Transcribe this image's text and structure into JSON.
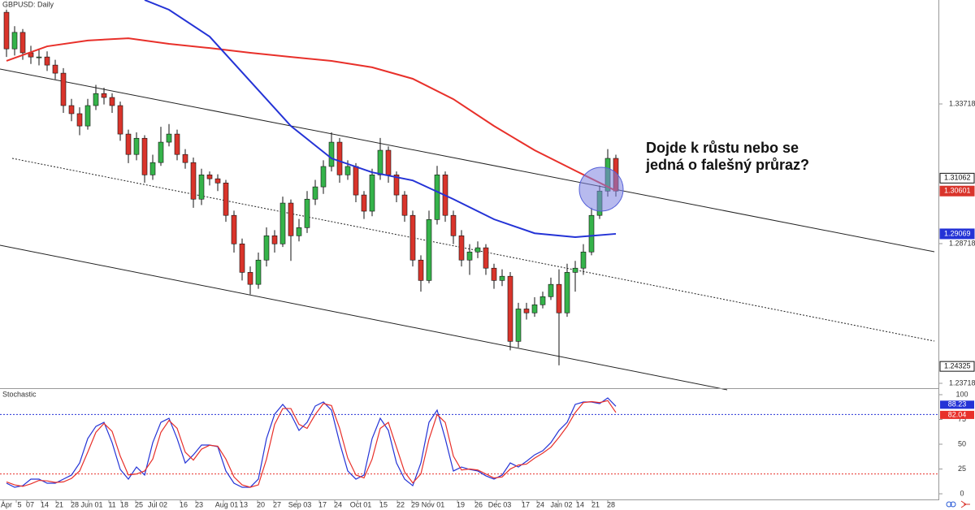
{
  "chart_data": [
    {
      "type": "candlestick",
      "title": "GBPUSD: Daily",
      "annotation": [
        "Dojde k růstu nebo se",
        "jedná o falešný průraz?"
      ],
      "ylim": [
        1.23544,
        1.37439
      ],
      "yticks": [
        1.23718,
        1.28718,
        1.33718
      ],
      "up_color": "#35b34a",
      "down_color": "#d9342b",
      "candles": [
        [
          1.37,
          1.3744,
          1.354,
          1.3569
        ],
        [
          1.3569,
          1.365,
          1.3545,
          1.3628
        ],
        [
          1.3628,
          1.364,
          1.353,
          1.3555
        ],
        [
          1.3555,
          1.358,
          1.3515,
          1.354
        ],
        [
          1.354,
          1.357,
          1.351,
          1.354
        ],
        [
          1.354,
          1.356,
          1.349,
          1.3511
        ],
        [
          1.3511,
          1.353,
          1.346,
          1.3482
        ],
        [
          1.3482,
          1.35,
          1.334,
          1.3366
        ],
        [
          1.3366,
          1.339,
          1.331,
          1.3337
        ],
        [
          1.3337,
          1.336,
          1.326,
          1.3293
        ],
        [
          1.3293,
          1.339,
          1.328,
          1.3366
        ],
        [
          1.3366,
          1.344,
          1.335,
          1.3409
        ],
        [
          1.3409,
          1.343,
          1.337,
          1.3395
        ],
        [
          1.3395,
          1.341,
          1.334,
          1.3366
        ],
        [
          1.3366,
          1.338,
          1.324,
          1.3264
        ],
        [
          1.3264,
          1.328,
          1.316,
          1.3191
        ],
        [
          1.3191,
          1.327,
          1.317,
          1.3249
        ],
        [
          1.3249,
          1.326,
          1.309,
          1.3118
        ],
        [
          1.3118,
          1.319,
          1.31,
          1.3162
        ],
        [
          1.3162,
          1.329,
          1.315,
          1.3235
        ],
        [
          1.3235,
          1.33,
          1.322,
          1.3264
        ],
        [
          1.3264,
          1.328,
          1.317,
          1.3191
        ],
        [
          1.3191,
          1.321,
          1.314,
          1.3162
        ],
        [
          1.3162,
          1.318,
          1.3,
          1.3031
        ],
        [
          1.3031,
          1.314,
          1.301,
          1.3118
        ],
        [
          1.3118,
          1.313,
          1.308,
          1.3104
        ],
        [
          1.3104,
          1.312,
          1.306,
          1.3089
        ],
        [
          1.3089,
          1.31,
          1.295,
          1.2973
        ],
        [
          1.2973,
          1.299,
          1.284,
          1.2871
        ],
        [
          1.2871,
          1.289,
          1.274,
          1.2769
        ],
        [
          1.2769,
          1.279,
          1.269,
          1.2726
        ],
        [
          1.2726,
          1.284,
          1.271,
          1.2813
        ],
        [
          1.2813,
          1.293,
          1.279,
          1.29
        ],
        [
          1.29,
          1.292,
          1.284,
          1.2871
        ],
        [
          1.2871,
          1.304,
          1.286,
          1.3017
        ],
        [
          1.3017,
          1.303,
          1.281,
          1.29
        ],
        [
          1.29,
          1.296,
          1.288,
          1.2929
        ],
        [
          1.2929,
          1.306,
          1.291,
          1.3031
        ],
        [
          1.3031,
          1.31,
          1.301,
          1.3075
        ],
        [
          1.3075,
          1.317,
          1.305,
          1.3148
        ],
        [
          1.3148,
          1.327,
          1.313,
          1.3235
        ],
        [
          1.3235,
          1.325,
          1.309,
          1.3118
        ],
        [
          1.3118,
          1.317,
          1.31,
          1.3148
        ],
        [
          1.3148,
          1.316,
          1.302,
          1.3046
        ],
        [
          1.3046,
          1.306,
          1.296,
          1.2988
        ],
        [
          1.2988,
          1.314,
          1.297,
          1.3118
        ],
        [
          1.3118,
          1.325,
          1.31,
          1.3206
        ],
        [
          1.3206,
          1.322,
          1.309,
          1.3118
        ],
        [
          1.3118,
          1.313,
          1.302,
          1.3046
        ],
        [
          1.3046,
          1.306,
          1.295,
          1.2973
        ],
        [
          1.2973,
          1.299,
          1.279,
          1.2813
        ],
        [
          1.2813,
          1.283,
          1.27,
          1.274
        ],
        [
          1.274,
          1.299,
          1.273,
          1.2958
        ],
        [
          1.2958,
          1.315,
          1.294,
          1.3118
        ],
        [
          1.3118,
          1.313,
          1.295,
          1.2973
        ],
        [
          1.2973,
          1.299,
          1.287,
          1.29
        ],
        [
          1.29,
          1.292,
          1.279,
          1.2813
        ],
        [
          1.2813,
          1.287,
          1.276,
          1.2842
        ],
        [
          1.2842,
          1.288,
          1.282,
          1.2857
        ],
        [
          1.2857,
          1.287,
          1.276,
          1.2784
        ],
        [
          1.2784,
          1.28,
          1.271,
          1.274
        ],
        [
          1.274,
          1.278,
          1.272,
          1.2755
        ],
        [
          1.2755,
          1.277,
          1.249,
          1.2522
        ],
        [
          1.2522,
          1.266,
          1.25,
          1.2638
        ],
        [
          1.2638,
          1.266,
          1.26,
          1.2624
        ],
        [
          1.2624,
          1.268,
          1.261,
          1.2653
        ],
        [
          1.2653,
          1.27,
          1.264,
          1.2682
        ],
        [
          1.2682,
          1.275,
          1.267,
          1.2726
        ],
        [
          1.2726,
          1.278,
          1.2436,
          1.2624
        ],
        [
          1.2624,
          1.28,
          1.261,
          1.2769
        ],
        [
          1.2769,
          1.281,
          1.27,
          1.2784
        ],
        [
          1.2784,
          1.287,
          1.276,
          1.2842
        ],
        [
          1.2842,
          1.3,
          1.283,
          1.2973
        ],
        [
          1.2973,
          1.308,
          1.296,
          1.306
        ],
        [
          1.306,
          1.321,
          1.304,
          1.3177
        ],
        [
          1.3177,
          1.319,
          1.304,
          1.30601
        ]
      ],
      "ma_series": [
        {
          "color": "#e8302a",
          "x": [
            0,
            5,
            10,
            15,
            20,
            25,
            30,
            35,
            40,
            45,
            50,
            55,
            60,
            65,
            70,
            75
          ],
          "values": [
            1.3526,
            1.3578,
            1.3599,
            1.3607,
            1.3587,
            1.3572,
            1.3555,
            1.354,
            1.3526,
            1.3503,
            1.3462,
            1.3389,
            1.3293,
            1.3206,
            1.3133,
            1.3061
          ]
        },
        {
          "color": "#2433d6",
          "x": [
            17,
            20,
            25,
            30,
            35,
            40,
            45,
            50,
            55,
            60,
            65,
            70,
            75
          ],
          "values": [
            1.3744,
            1.3709,
            1.3613,
            1.3453,
            1.3293,
            1.3177,
            1.3127,
            1.3098,
            1.3031,
            1.2959,
            1.2909,
            1.2895,
            1.29069
          ]
        }
      ],
      "price_labels": [
        1.31062,
        1.24325
      ]
    },
    {
      "type": "stochastic",
      "title": "Stochastic",
      "ylim": [
        -5.7,
        104.9
      ],
      "yticks": [
        0,
        25,
        50,
        75,
        100
      ],
      "levels": [
        {
          "value": 80,
          "color": "#2433d6"
        },
        {
          "value": 20,
          "color": "#e8302a"
        }
      ],
      "series": [
        {
          "color": "#2433d6",
          "values": [
            10.7,
            6.6,
            8.2,
            14.8,
            14.8,
            10.7,
            10.7,
            14.8,
            18.9,
            31.1,
            55.7,
            68,
            72.1,
            51.6,
            24.6,
            14.8,
            27,
            18.9,
            51.6,
            72.1,
            76.2,
            55.7,
            31.1,
            39.3,
            49.2,
            49.2,
            47.5,
            23,
            10.7,
            6.6,
            6.6,
            14.8,
            55.7,
            80.3,
            90.2,
            80.3,
            63.9,
            72.1,
            88.5,
            92.6,
            84.4,
            51.6,
            23,
            14.8,
            18.9,
            55.7,
            76.2,
            63.9,
            31.1,
            14.8,
            8.2,
            31.1,
            72.1,
            84.4,
            55.7,
            23,
            27,
            24.6,
            23,
            18.1,
            14.8,
            18.9,
            31.1,
            27,
            32.8,
            39.3,
            43.4,
            51.6,
            63.9,
            72.1,
            90.2,
            92.6,
            92.6,
            91,
            96.7,
            88.23
          ]
        },
        {
          "color": "#e8302a",
          "values": [
            12,
            9,
            7.5,
            10,
            13.5,
            13,
            11.5,
            12,
            15.5,
            23,
            42,
            62,
            71,
            63,
            38,
            19,
            20,
            23,
            35,
            62,
            74,
            66,
            42,
            34,
            45,
            49,
            48,
            35,
            17,
            9,
            6.6,
            9,
            35,
            70,
            86,
            86,
            70,
            66,
            80,
            91,
            89,
            66,
            36,
            19,
            16,
            35,
            66,
            72,
            47,
            22,
            11,
            20,
            55,
            80,
            72,
            38,
            24,
            25,
            24,
            20,
            16,
            17,
            25,
            29,
            30,
            36,
            41,
            47,
            57,
            68,
            82,
            92,
            93,
            92,
            94,
            82.04
          ]
        }
      ],
      "x_labels": [
        "Apr",
        "5",
        "07",
        "14",
        "21",
        "28",
        "Jun 01",
        "11",
        "18",
        "25",
        "Jul 02",
        "16",
        "23",
        "Aug 01",
        "13",
        "20",
        "27",
        "Sep 03",
        "17",
        "24",
        "Oct 01",
        "15",
        "22",
        "29",
        "Nov 01",
        "19",
        "26",
        "Dec 03",
        "17",
        "24",
        "Jan 02",
        "14",
        "21",
        "28"
      ]
    }
  ]
}
